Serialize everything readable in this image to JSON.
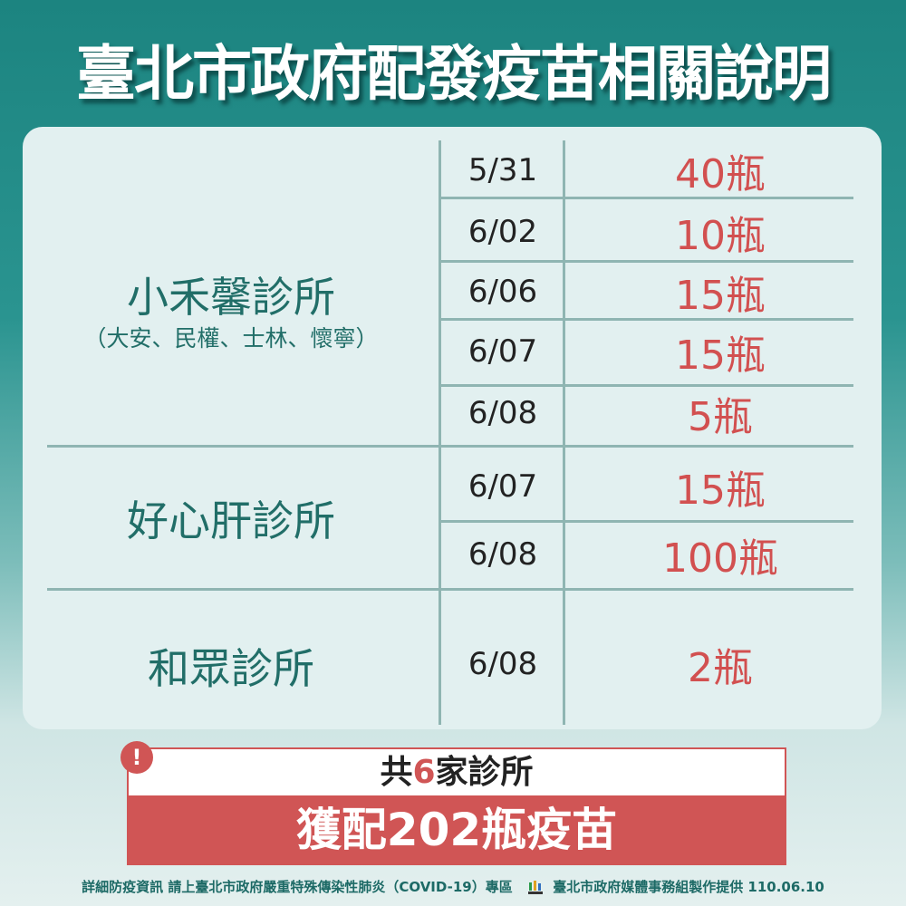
{
  "title": "臺北市政府配發疫苗相關說明",
  "clinics": [
    {
      "name": "小禾馨診所",
      "sub": "（大安、民權、士林、懷寧）",
      "rows": [
        {
          "date": "5/31",
          "amount": "40瓶"
        },
        {
          "date": "6/02",
          "amount": "10瓶"
        },
        {
          "date": "6/06",
          "amount": "15瓶"
        },
        {
          "date": "6/07",
          "amount": "15瓶"
        },
        {
          "date": "6/08",
          "amount": "5瓶"
        }
      ]
    },
    {
      "name": "好心肝診所",
      "rows": [
        {
          "date": "6/07",
          "amount": "15瓶"
        },
        {
          "date": "6/08",
          "amount": "100瓶"
        }
      ]
    },
    {
      "name": "和眾診所",
      "rows": [
        {
          "date": "6/08",
          "amount": "2瓶"
        }
      ]
    }
  ],
  "summary": {
    "prefix": "共",
    "count": "6",
    "suffix": "家診所",
    "total": "獲配202瓶疫苗",
    "icon": "exclamation-icon"
  },
  "footer": {
    "info": "詳細防疫資訊 請上臺北市政府嚴重特殊傳染性肺炎（COVID-19）專區",
    "logo_text": "TAIPEI",
    "credit": "臺北市政府媒體事務組製作提供 110.06.10"
  },
  "colors": {
    "teal": "#216e68",
    "red": "#d05555"
  }
}
